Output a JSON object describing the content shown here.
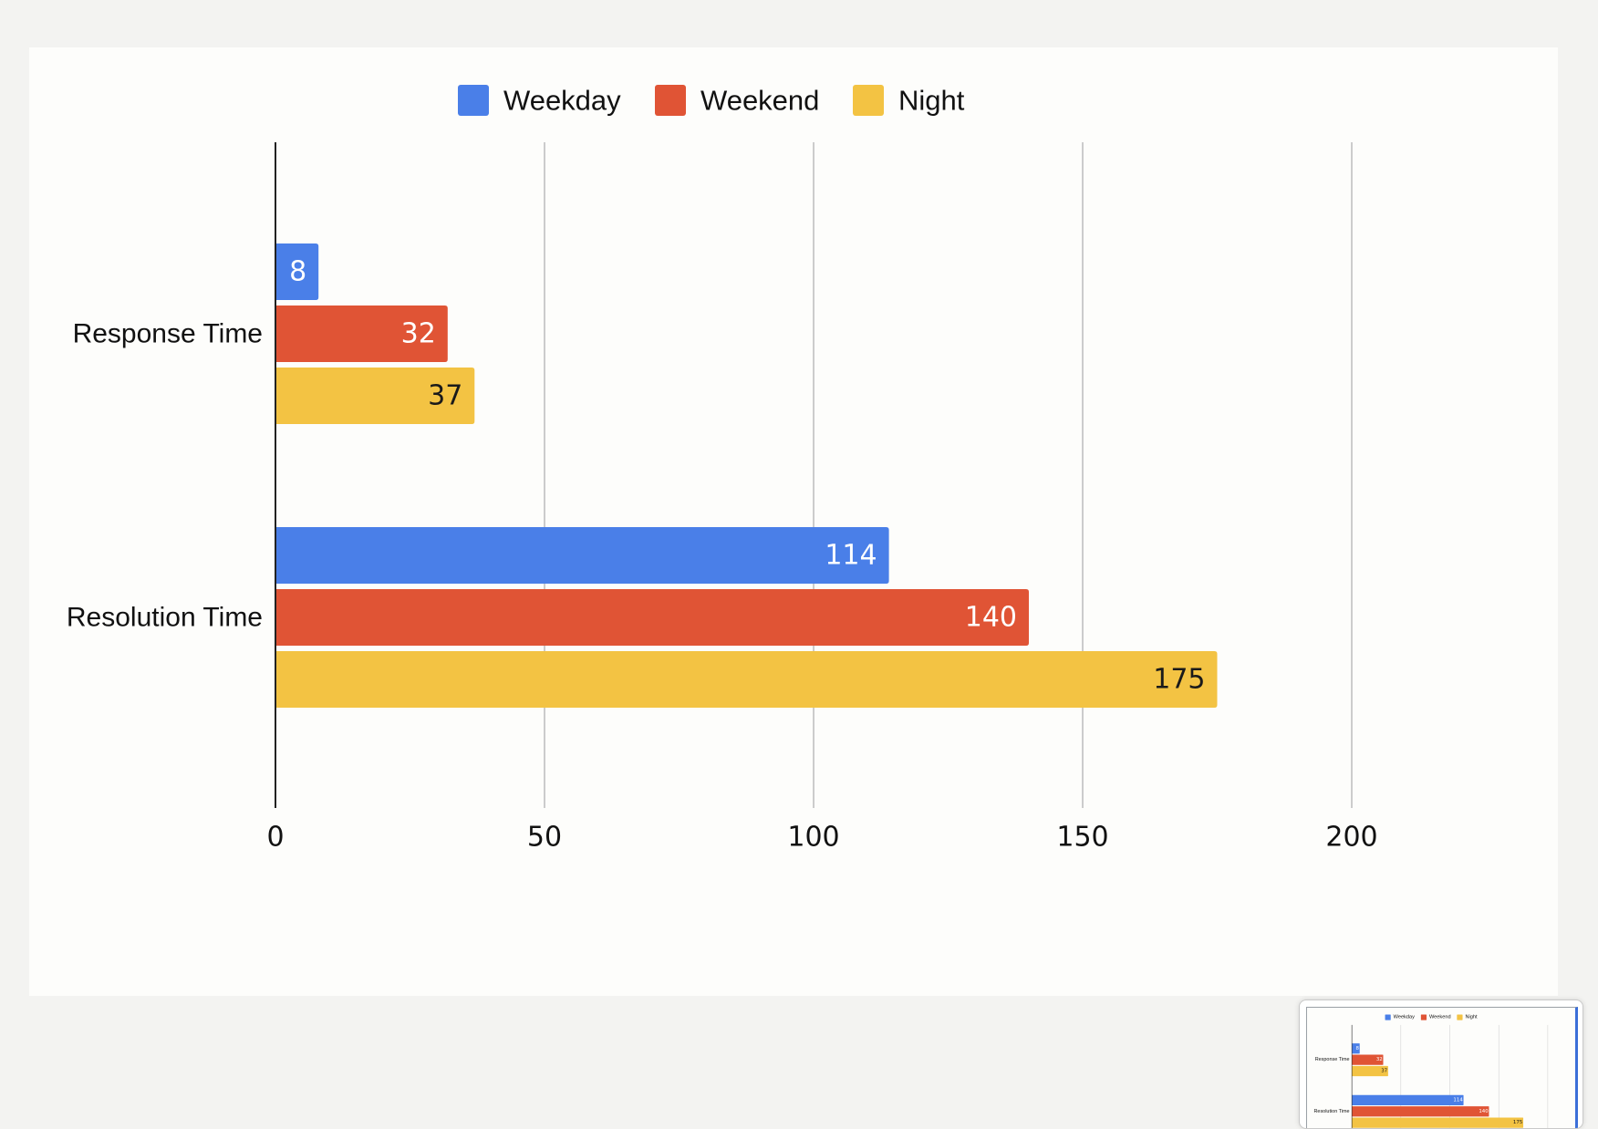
{
  "chart_data": {
    "type": "bar",
    "orientation": "horizontal",
    "categories": [
      "Response Time",
      "Resolution Time"
    ],
    "series": [
      {
        "name": "Weekday",
        "color": "#4a7fe8",
        "values": [
          8,
          114
        ],
        "label_color": "#ffffff"
      },
      {
        "name": "Weekend",
        "color": "#e05435",
        "values": [
          32,
          140
        ],
        "label_color": "#ffffff"
      },
      {
        "name": "Night",
        "color": "#f3c343",
        "values": [
          37,
          175
        ],
        "label_color": "#1a1a1a"
      }
    ],
    "xlim": [
      0,
      200
    ],
    "x_ticks": [
      "0",
      "50",
      "100",
      "150",
      "200"
    ],
    "grid": true,
    "legend_position": "top-center",
    "data_labels": true
  },
  "colors": {
    "grid": "#cccccc",
    "axis": "#222222",
    "text": "#111111",
    "background": "#fdfdfb"
  }
}
